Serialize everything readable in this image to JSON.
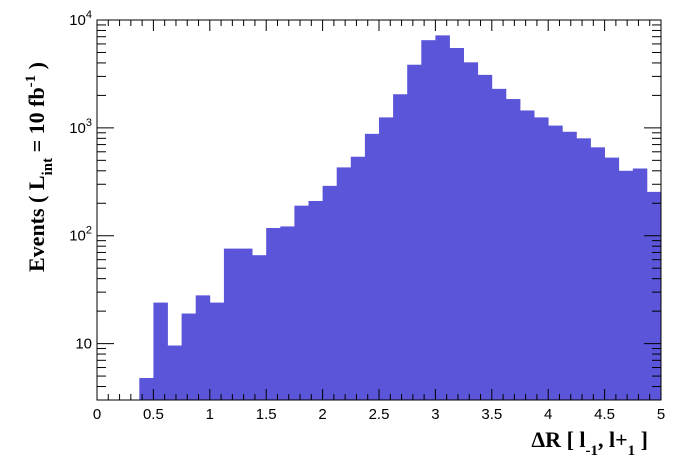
{
  "chart_data": {
    "type": "bar",
    "style": "histogram",
    "fill_color": "#5b55d9",
    "xlim": [
      0,
      5
    ],
    "ylim": [
      3,
      10000
    ],
    "yscale": "log",
    "bin_width": 0.125,
    "bins_x_start": [
      0.375,
      0.5,
      0.625,
      0.75,
      0.875,
      1.0,
      1.125,
      1.25,
      1.375,
      1.5,
      1.625,
      1.75,
      1.875,
      2.0,
      2.125,
      2.25,
      2.375,
      2.5,
      2.625,
      2.75,
      2.875,
      3.0,
      3.125,
      3.25,
      3.375,
      3.5,
      3.625,
      3.75,
      3.875,
      4.0,
      4.125,
      4.25,
      4.375,
      4.5,
      4.625,
      4.75,
      4.875
    ],
    "values": [
      4.8,
      24,
      9.6,
      19,
      28,
      24,
      76,
      76,
      66,
      118,
      122,
      190,
      210,
      290,
      430,
      540,
      880,
      1250,
      2050,
      3850,
      6500,
      7200,
      5500,
      4050,
      3100,
      2300,
      1850,
      1450,
      1250,
      1050,
      920,
      800,
      660,
      530,
      400,
      420,
      255
    ],
    "x_ticks": [
      "0",
      "0.5",
      "1",
      "1.5",
      "2",
      "2.5",
      "3",
      "3.5",
      "4",
      "4.5",
      "5"
    ],
    "y_ticks": [
      {
        "value": 10,
        "base": "10",
        "exp": ""
      },
      {
        "value": 100,
        "base": "10",
        "exp": "2"
      },
      {
        "value": 1000,
        "base": "10",
        "exp": "3"
      },
      {
        "value": 10000,
        "base": "10",
        "exp": "4"
      }
    ],
    "xlabel": {
      "pre": "ΔR [ l",
      "sub1": "-1",
      "mid": ", l+",
      "sub2": "1",
      "post": " ]"
    },
    "ylabel": {
      "pre": "Events  ( L",
      "sub": "int",
      "mid": " = 10 fb",
      "sup": "-1",
      "post": " )"
    }
  }
}
